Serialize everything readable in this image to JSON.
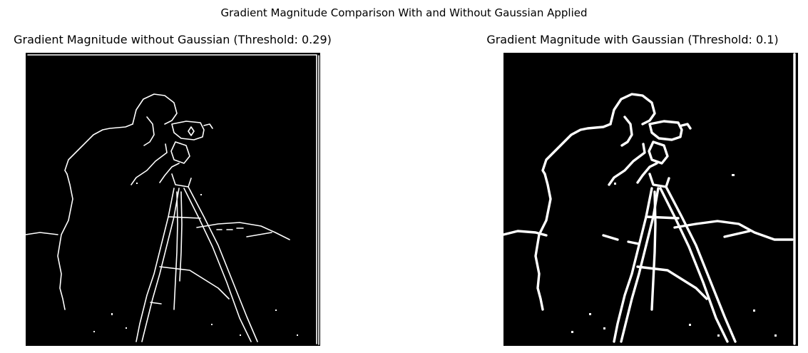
{
  "figure": {
    "suptitle": "Gradient Magnitude Comparison With and Without Gaussian Applied"
  },
  "panels": [
    {
      "title": "Gradient Magnitude without Gaussian (Threshold: 0.29)",
      "image": "thresholded gradient magnitude edge map (no Gaussian)"
    },
    {
      "title": "Gradient Magnitude with Gaussian (Threshold: 0.1)",
      "image": "thresholded gradient magnitude edge map (Gaussian smoothed)"
    }
  ]
}
